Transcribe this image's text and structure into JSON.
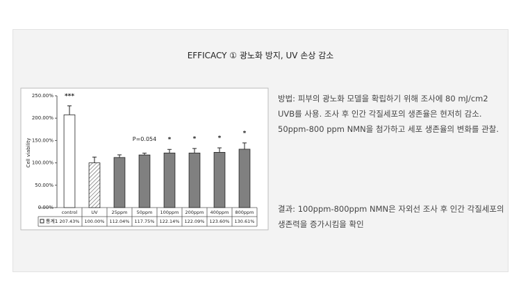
{
  "heading": "EFFICACY ① 광노화 방지, UV 손상 감소",
  "method": "방법: 피부의 광노화 모델을 확립하기 위해 조사에 80 mJ/cm2 UVB를 사용. 조사 후 인간 각질세포의 생존율은 현저히 감소. 50ppm-800 ppm NMN을 첨가하고 세포 생존율의 변화를 관찰.",
  "result": "결과: 100ppm-800ppm NMN은 자외선 조사 후 인간 각질세포의 생존력을 증가시킴을 확인",
  "chart_data": {
    "type": "bar",
    "y_label": "Cell viability",
    "categories": [
      "control",
      "UV",
      "25ppm",
      "50ppm",
      "100ppm",
      "200ppm",
      "400ppm",
      "800ppm"
    ],
    "series": [
      {
        "name": "통계1",
        "color": "#808080",
        "values": [
          207.43,
          100,
          112.04,
          117.75,
          122.14,
          122.09,
          123.6,
          130.61
        ],
        "value_labels": [
          "207.43%",
          "100.00%",
          "112.04%",
          "117.75%",
          "122.14%",
          "122.09%",
          "123.60%",
          "130.61%"
        ],
        "errors": [
          20,
          13,
          6,
          4,
          8,
          10,
          10,
          14
        ]
      }
    ],
    "fills": [
      "#ffffff",
      "hatch",
      "#808080",
      "#808080",
      "#808080",
      "#808080",
      "#808080",
      "#808080"
    ],
    "annotations": [
      {
        "category": "control",
        "text": "***"
      },
      {
        "category": "50ppm",
        "text": "P=0.054"
      },
      {
        "category": "100ppm",
        "text": "*"
      },
      {
        "category": "200ppm",
        "text": "*"
      },
      {
        "category": "400ppm",
        "text": "*"
      },
      {
        "category": "800ppm",
        "text": "*"
      }
    ],
    "ylim": [
      0,
      250
    ],
    "yticks": [
      {
        "value": 0,
        "label": "0.00%"
      },
      {
        "value": 50,
        "label": "50.00%"
      },
      {
        "value": 100,
        "label": "100.00%"
      },
      {
        "value": 150,
        "label": "150.00%"
      },
      {
        "value": 200,
        "label": "200.00%"
      },
      {
        "value": 250,
        "label": "250.00%"
      }
    ]
  }
}
